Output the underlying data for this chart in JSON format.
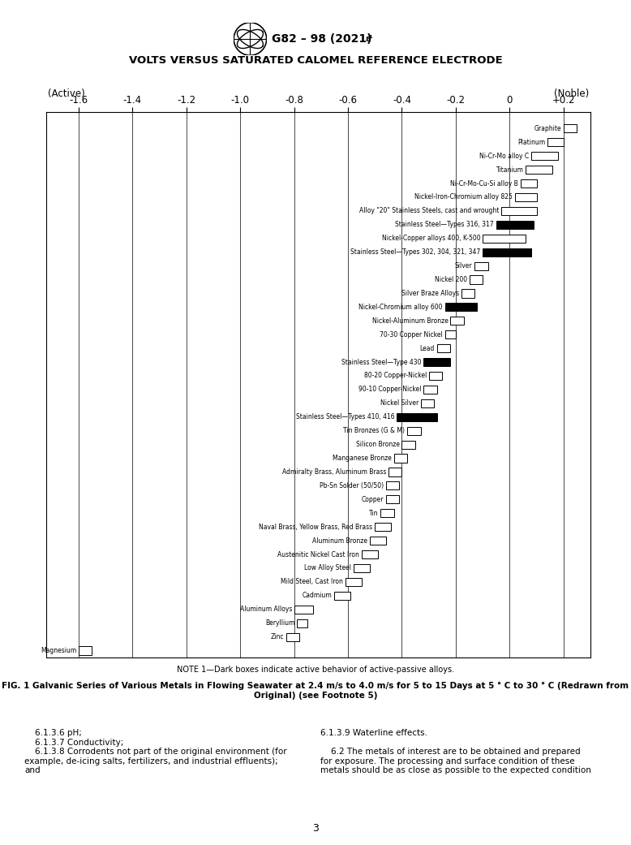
{
  "chart_title": "VOLTS VERSUS SATURATED CALOMEL REFERENCE ELECTRODE",
  "xlabel_left": "(Active)",
  "xlabel_right": "(Noble)",
  "x_ticks": [
    -1.6,
    -1.4,
    -1.2,
    -1.0,
    -0.8,
    -0.6,
    -0.4,
    -0.2,
    0.0,
    0.2
  ],
  "x_tick_labels": [
    "-1.6",
    "-1.4",
    "-1.2",
    "-1.0",
    "-0.8",
    "-0.6",
    "-0.4",
    "-0.2",
    "0",
    "+0.2"
  ],
  "xlim": [
    -1.72,
    0.3
  ],
  "note": "NOTE 1—Dark boxes indicate active behavior of active-passive alloys.",
  "fig_caption": "FIG. 1 Galvanic Series of Various Metals in Flowing Seawater at 2.4 m/s to 4.0 m/s for 5 to 15 Days at 5 ° C to 30 ° C (Redrawn from\nOriginal) (see Footnote 5)",
  "text_left": "    6.1.3.6 pH;\n    6.1.3.7 Conductivity;\n    6.1.3.8 Corrodents not part of the original environment (for\nexample, de-icing salts, fertilizers, and industrial effluents);\nand",
  "text_right": "6.1.3.9 Waterline effects.\n\n    6.2 The metals of interest are to be obtained and prepared\nfor exposure. The processing and surface condition of these\nmetals should be as close as possible to the expected condition",
  "page_number": "3",
  "metals": [
    {
      "name": "Graphite",
      "low": 0.2,
      "high": 0.25,
      "active": false
    },
    {
      "name": "Platinum",
      "low": 0.14,
      "high": 0.2,
      "active": false
    },
    {
      "name": "Ni-Cr-Mo alloy C",
      "low": 0.08,
      "high": 0.18,
      "active": false
    },
    {
      "name": "Titanium",
      "low": 0.06,
      "high": 0.16,
      "active": false
    },
    {
      "name": "Ni-Cr-Mo-Cu-Si alloy B",
      "low": 0.04,
      "high": 0.1,
      "active": false
    },
    {
      "name": "Nickel-Iron-Chromium alloy 825",
      "low": 0.02,
      "high": 0.1,
      "active": false
    },
    {
      "name": "Alloy \"20\" Stainless Steels, cast and wrought",
      "low": -0.03,
      "high": 0.1,
      "active": false
    },
    {
      "name": "Stainless Steel—Types 316, 317",
      "low": -0.05,
      "high": 0.09,
      "active": true
    },
    {
      "name": "Nickel-Copper alloys 400, K-500",
      "low": -0.1,
      "high": 0.06,
      "active": false
    },
    {
      "name": "Stainless Steel—Types 302, 304, 321, 347",
      "low": -0.1,
      "high": 0.08,
      "active": true
    },
    {
      "name": "Silver",
      "low": -0.13,
      "high": -0.08,
      "active": false
    },
    {
      "name": "Nickel 200",
      "low": -0.15,
      "high": -0.1,
      "active": false
    },
    {
      "name": "Silver Braze Alloys",
      "low": -0.18,
      "high": -0.13,
      "active": false
    },
    {
      "name": "Nickel-Chromium alloy 600",
      "low": -0.24,
      "high": -0.12,
      "active": true
    },
    {
      "name": "Nickel-Aluminum Bronze",
      "low": -0.22,
      "high": -0.17,
      "active": false
    },
    {
      "name": "70-30 Copper Nickel",
      "low": -0.24,
      "high": -0.2,
      "active": false
    },
    {
      "name": "Lead",
      "low": -0.27,
      "high": -0.22,
      "active": false
    },
    {
      "name": "Stainless Steel—Type 430",
      "low": -0.32,
      "high": -0.22,
      "active": true
    },
    {
      "name": "80-20 Copper-Nickel",
      "low": -0.3,
      "high": -0.25,
      "active": false
    },
    {
      "name": "90-10 Copper-Nickel",
      "low": -0.32,
      "high": -0.27,
      "active": false
    },
    {
      "name": "Nickel Silver",
      "low": -0.33,
      "high": -0.28,
      "active": false
    },
    {
      "name": "Stainless Steel—Types 410, 416",
      "low": -0.42,
      "high": -0.27,
      "active": true
    },
    {
      "name": "Tin Bronzes (G & M)",
      "low": -0.38,
      "high": -0.33,
      "active": false
    },
    {
      "name": "Silicon Bronze",
      "low": -0.4,
      "high": -0.35,
      "active": false
    },
    {
      "name": "Manganese Bronze",
      "low": -0.43,
      "high": -0.38,
      "active": false
    },
    {
      "name": "Admiralty Brass, Aluminum Brass",
      "low": -0.45,
      "high": -0.4,
      "active": false
    },
    {
      "name": "Pb-Sn Solder (50/50)",
      "low": -0.46,
      "high": -0.41,
      "active": false
    },
    {
      "name": "Copper",
      "low": -0.46,
      "high": -0.41,
      "active": false
    },
    {
      "name": "Tin",
      "low": -0.48,
      "high": -0.43,
      "active": false
    },
    {
      "name": "Naval Brass, Yellow Brass, Red Brass",
      "low": -0.5,
      "high": -0.44,
      "active": false
    },
    {
      "name": "Aluminum Bronze",
      "low": -0.52,
      "high": -0.46,
      "active": false
    },
    {
      "name": "Austenitic Nickel Cast Iron",
      "low": -0.55,
      "high": -0.49,
      "active": false
    },
    {
      "name": "Low Alloy Steel",
      "low": -0.58,
      "high": -0.52,
      "active": false
    },
    {
      "name": "Mild Steel, Cast Iron",
      "low": -0.61,
      "high": -0.55,
      "active": false
    },
    {
      "name": "Cadmium",
      "low": -0.65,
      "high": -0.59,
      "active": false
    },
    {
      "name": "Aluminum Alloys",
      "low": -0.8,
      "high": -0.73,
      "active": false
    },
    {
      "name": "Beryllium",
      "low": -0.79,
      "high": -0.75,
      "active": false
    },
    {
      "name": "Zinc",
      "low": -0.83,
      "high": -0.78,
      "active": false
    },
    {
      "name": "Magnesium",
      "low": -1.6,
      "high": -1.55,
      "active": false
    }
  ]
}
